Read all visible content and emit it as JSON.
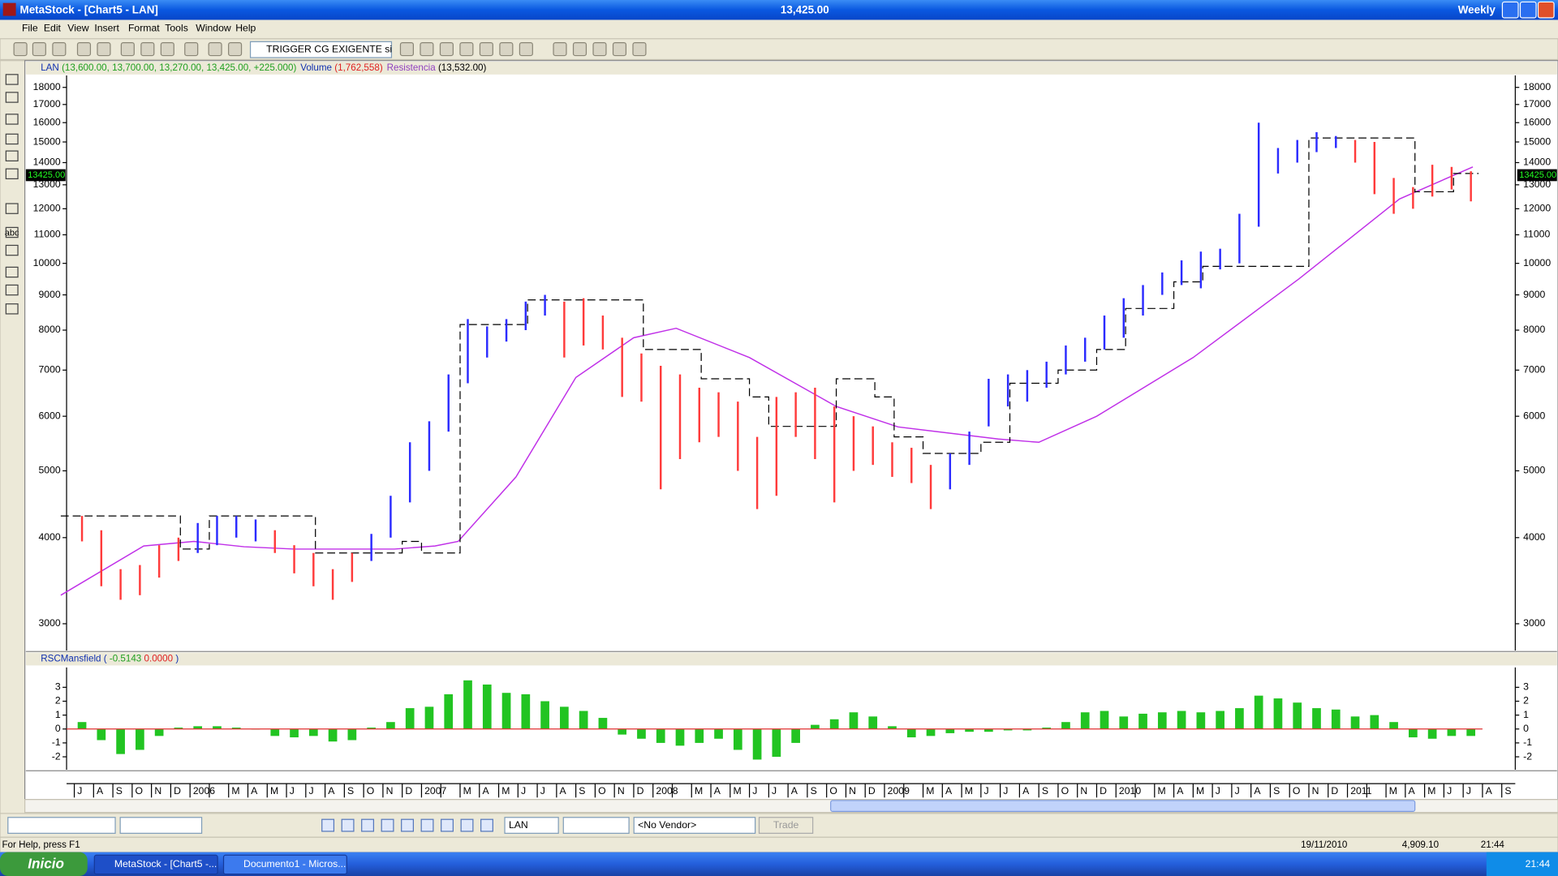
{
  "window": {
    "title": "MetaStock - [Chart5 - LAN]",
    "price": "13,425.00",
    "period": "Weekly"
  },
  "menu": [
    "File",
    "Edit",
    "View",
    "Insert",
    "Format",
    "Tools",
    "Window",
    "Help"
  ],
  "toolbar": {
    "expert": "TRIGGER CG EXIGENTE si"
  },
  "tools": {
    "text": "abc"
  },
  "chart_data": [
    {
      "type": "ohlc",
      "title": "LAN",
      "quote": "(13,600.00, 13,700.00, 13,270.00, 13,425.00, +225.000)",
      "volume_name": "Volume",
      "volume_value": "(1,762,558)",
      "resistance_name": "Resistencia",
      "resistance_value": "(13,532.00)",
      "log_scale": true,
      "categories": [
        "J",
        "A",
        "S",
        "O",
        "N",
        "D",
        "2006",
        null,
        "M",
        "A",
        "M",
        "J",
        "J",
        "A",
        "S",
        "O",
        "N",
        "D",
        "2007",
        null,
        "M",
        "A",
        "M",
        "J",
        "J",
        "A",
        "S",
        "O",
        "N",
        "D",
        "2008",
        null,
        "M",
        "A",
        "M",
        "J",
        "J",
        "A",
        "S",
        "O",
        "N",
        "D",
        "2009",
        null,
        "M",
        "A",
        "M",
        "J",
        "J",
        "A",
        "S",
        "O",
        "N",
        "D",
        "2010",
        null,
        "M",
        "A",
        "M",
        "J",
        "J",
        "A",
        "S",
        "O",
        "N",
        "D",
        "2011",
        null,
        "M",
        "A",
        "M",
        "J",
        "J",
        "A",
        "S"
      ],
      "xlim": [
        -0.4,
        74.7
      ],
      "high": [
        4300,
        4100,
        3600,
        3650,
        3900,
        4000,
        4200,
        4300,
        4300,
        4250,
        4100,
        3900,
        3800,
        3600,
        3800,
        4050,
        4600,
        5500,
        5900,
        6900,
        8300,
        8100,
        8300,
        8800,
        9000,
        8800,
        8900,
        8400,
        7800,
        7400,
        7100,
        6900,
        6600,
        6500,
        6300,
        5600,
        6400,
        6500,
        6600,
        6200,
        6000,
        5800,
        5500,
        5400,
        5100,
        5300,
        5700,
        6800,
        6900,
        7000,
        7200,
        7600,
        7800,
        8400,
        8900,
        9300,
        9700,
        10100,
        10400,
        10500,
        11800,
        16000,
        14700,
        15100,
        15500,
        15300,
        15100,
        15000,
        13300,
        12900,
        13900,
        13800,
        13600,
        null,
        null
      ],
      "low": [
        3950,
        3400,
        3250,
        3300,
        3500,
        3700,
        3800,
        3900,
        4000,
        3950,
        3800,
        3550,
        3400,
        3250,
        3450,
        3700,
        4000,
        4500,
        5000,
        5700,
        6700,
        7300,
        7700,
        8000,
        8400,
        7300,
        7600,
        7500,
        6400,
        6300,
        4700,
        5200,
        5500,
        5600,
        5000,
        4400,
        4600,
        5600,
        5200,
        4500,
        5000,
        5100,
        4900,
        4800,
        4400,
        4700,
        5100,
        5800,
        6200,
        6300,
        6600,
        6900,
        7200,
        7500,
        7800,
        8400,
        9000,
        9300,
        9200,
        9800,
        10000,
        11300,
        13500,
        14000,
        14500,
        14700,
        14000,
        12600,
        11800,
        12000,
        12500,
        12800,
        12300,
        null,
        null
      ],
      "colors": [
        "#ff3b3b",
        "#ff3b3b",
        "#ff3b3b",
        "#ff3b3b",
        "#ff3b3b",
        "#ff3b3b",
        "#2b2bff",
        "#2b2bff",
        "#2b2bff",
        "#2b2bff",
        "#ff3b3b",
        "#ff3b3b",
        "#ff3b3b",
        "#ff3b3b",
        "#ff3b3b",
        "#2b2bff",
        "#2b2bff",
        "#2b2bff",
        "#2b2bff",
        "#2b2bff",
        "#2b2bff",
        "#2b2bff",
        "#2b2bff",
        "#2b2bff",
        "#2b2bff",
        "#ff3b3b",
        "#ff3b3b",
        "#ff3b3b",
        "#ff3b3b",
        "#ff3b3b",
        "#ff3b3b",
        "#ff3b3b",
        "#ff3b3b",
        "#ff3b3b",
        "#ff3b3b",
        "#ff3b3b",
        "#ff3b3b",
        "#ff3b3b",
        "#ff3b3b",
        "#ff3b3b",
        "#ff3b3b",
        "#ff3b3b",
        "#ff3b3b",
        "#ff3b3b",
        "#ff3b3b",
        "#2b2bff",
        "#2b2bff",
        "#2b2bff",
        "#2b2bff",
        "#2b2bff",
        "#2b2bff",
        "#2b2bff",
        "#2b2bff",
        "#2b2bff",
        "#2b2bff",
        "#2b2bff",
        "#2b2bff",
        "#2b2bff",
        "#2b2bff",
        "#2b2bff",
        "#2b2bff",
        "#2b2bff",
        "#2b2bff",
        "#2b2bff",
        "#2b2bff",
        "#2b2bff",
        "#ff3b3b",
        "#ff3b3b",
        "#ff3b3b",
        "#ff3b3b",
        "#ff3b3b",
        "#ff3b3b",
        "#ff3b3b",
        null,
        null
      ],
      "moving_average": {
        "color": "#c030e8",
        "x": [
          -0.7,
          3.6,
          6.2,
          8.8,
          11.4,
          16.6,
          18.7,
          19.9,
          22.9,
          26,
          29,
          31.2,
          35,
          39.5,
          42.7,
          47.9,
          50,
          53,
          58,
          63.5,
          68.7,
          72.5
        ],
        "values": [
          3300,
          3890,
          3950,
          3880,
          3850,
          3850,
          3890,
          3950,
          4900,
          6830,
          7800,
          8050,
          7300,
          6200,
          5790,
          5560,
          5500,
          6000,
          7300,
          9500,
          12400,
          13800
        ]
      },
      "resistance": {
        "color": "#000000",
        "x": [
          -0.7,
          5.5,
          7,
          12.5,
          17,
          18,
          20,
          23.5,
          29.5,
          32.5,
          35,
          36,
          39.5,
          41.5,
          42.5,
          44,
          47,
          48.5,
          51,
          53,
          54.5,
          57,
          58.5,
          64,
          69.5,
          71.5,
          72.8
        ],
        "values": [
          4300,
          3850,
          4300,
          3800,
          3950,
          3800,
          8150,
          8850,
          7500,
          6800,
          6400,
          5800,
          6800,
          6400,
          5600,
          5300,
          5500,
          6700,
          7000,
          7500,
          8600,
          9400,
          9900,
          15200,
          12700,
          13500,
          13500
        ]
      },
      "ylim": [
        2743,
        18730
      ],
      "yticks": [
        3000,
        4000,
        5000,
        6000,
        7000,
        8000,
        9000,
        10000,
        11000,
        12000,
        13000,
        14000,
        15000,
        16000,
        17000,
        18000
      ],
      "last": {
        "value": 13425,
        "label": "13425.00"
      }
    },
    {
      "type": "bar",
      "title": "RSCMansfield (",
      "value_a": "-0.5143",
      "value_b": "0.0000",
      "close": ")",
      "color": "#22c422",
      "zero_color": "#e03030",
      "values": [
        0.5,
        -0.8,
        -1.8,
        -1.5,
        -0.5,
        0.1,
        0.2,
        0.2,
        0.1,
        0,
        -0.5,
        -0.6,
        -0.5,
        -0.9,
        -0.8,
        0.1,
        0.5,
        1.5,
        1.6,
        2.5,
        3.5,
        3.2,
        2.6,
        2.5,
        2.0,
        1.6,
        1.3,
        0.8,
        -0.4,
        -0.7,
        -1.0,
        -1.2,
        -1.0,
        -0.7,
        -1.5,
        -2.2,
        -2.0,
        -1.0,
        0.3,
        0.7,
        1.2,
        0.9,
        0.2,
        -0.6,
        -0.5,
        -0.3,
        -0.2,
        -0.2,
        -0.1,
        -0.1,
        0.1,
        0.5,
        1.2,
        1.3,
        0.9,
        1.1,
        1.2,
        1.3,
        1.2,
        1.3,
        1.5,
        2.4,
        2.2,
        1.9,
        1.5,
        1.4,
        0.9,
        1.0,
        0.5,
        -0.6,
        -0.7,
        -0.5,
        -0.5,
        null,
        null
      ],
      "ylim": [
        -2.93,
        4.43
      ],
      "yticks": [
        -2,
        -1,
        0,
        1,
        2,
        3
      ]
    }
  ],
  "bottom": {
    "symbol": "LAN",
    "vendor": "<No Vendor>",
    "trade": "Trade"
  },
  "status": {
    "help": "For Help, press F1",
    "date": "19/11/2010",
    "value": "4,909.10",
    "time": "21:44"
  },
  "taskbar": {
    "start": "Inicio",
    "tasks": [
      "MetaStock - [Chart5 -...",
      "Documento1 - Micros..."
    ],
    "clock": "21:44"
  }
}
